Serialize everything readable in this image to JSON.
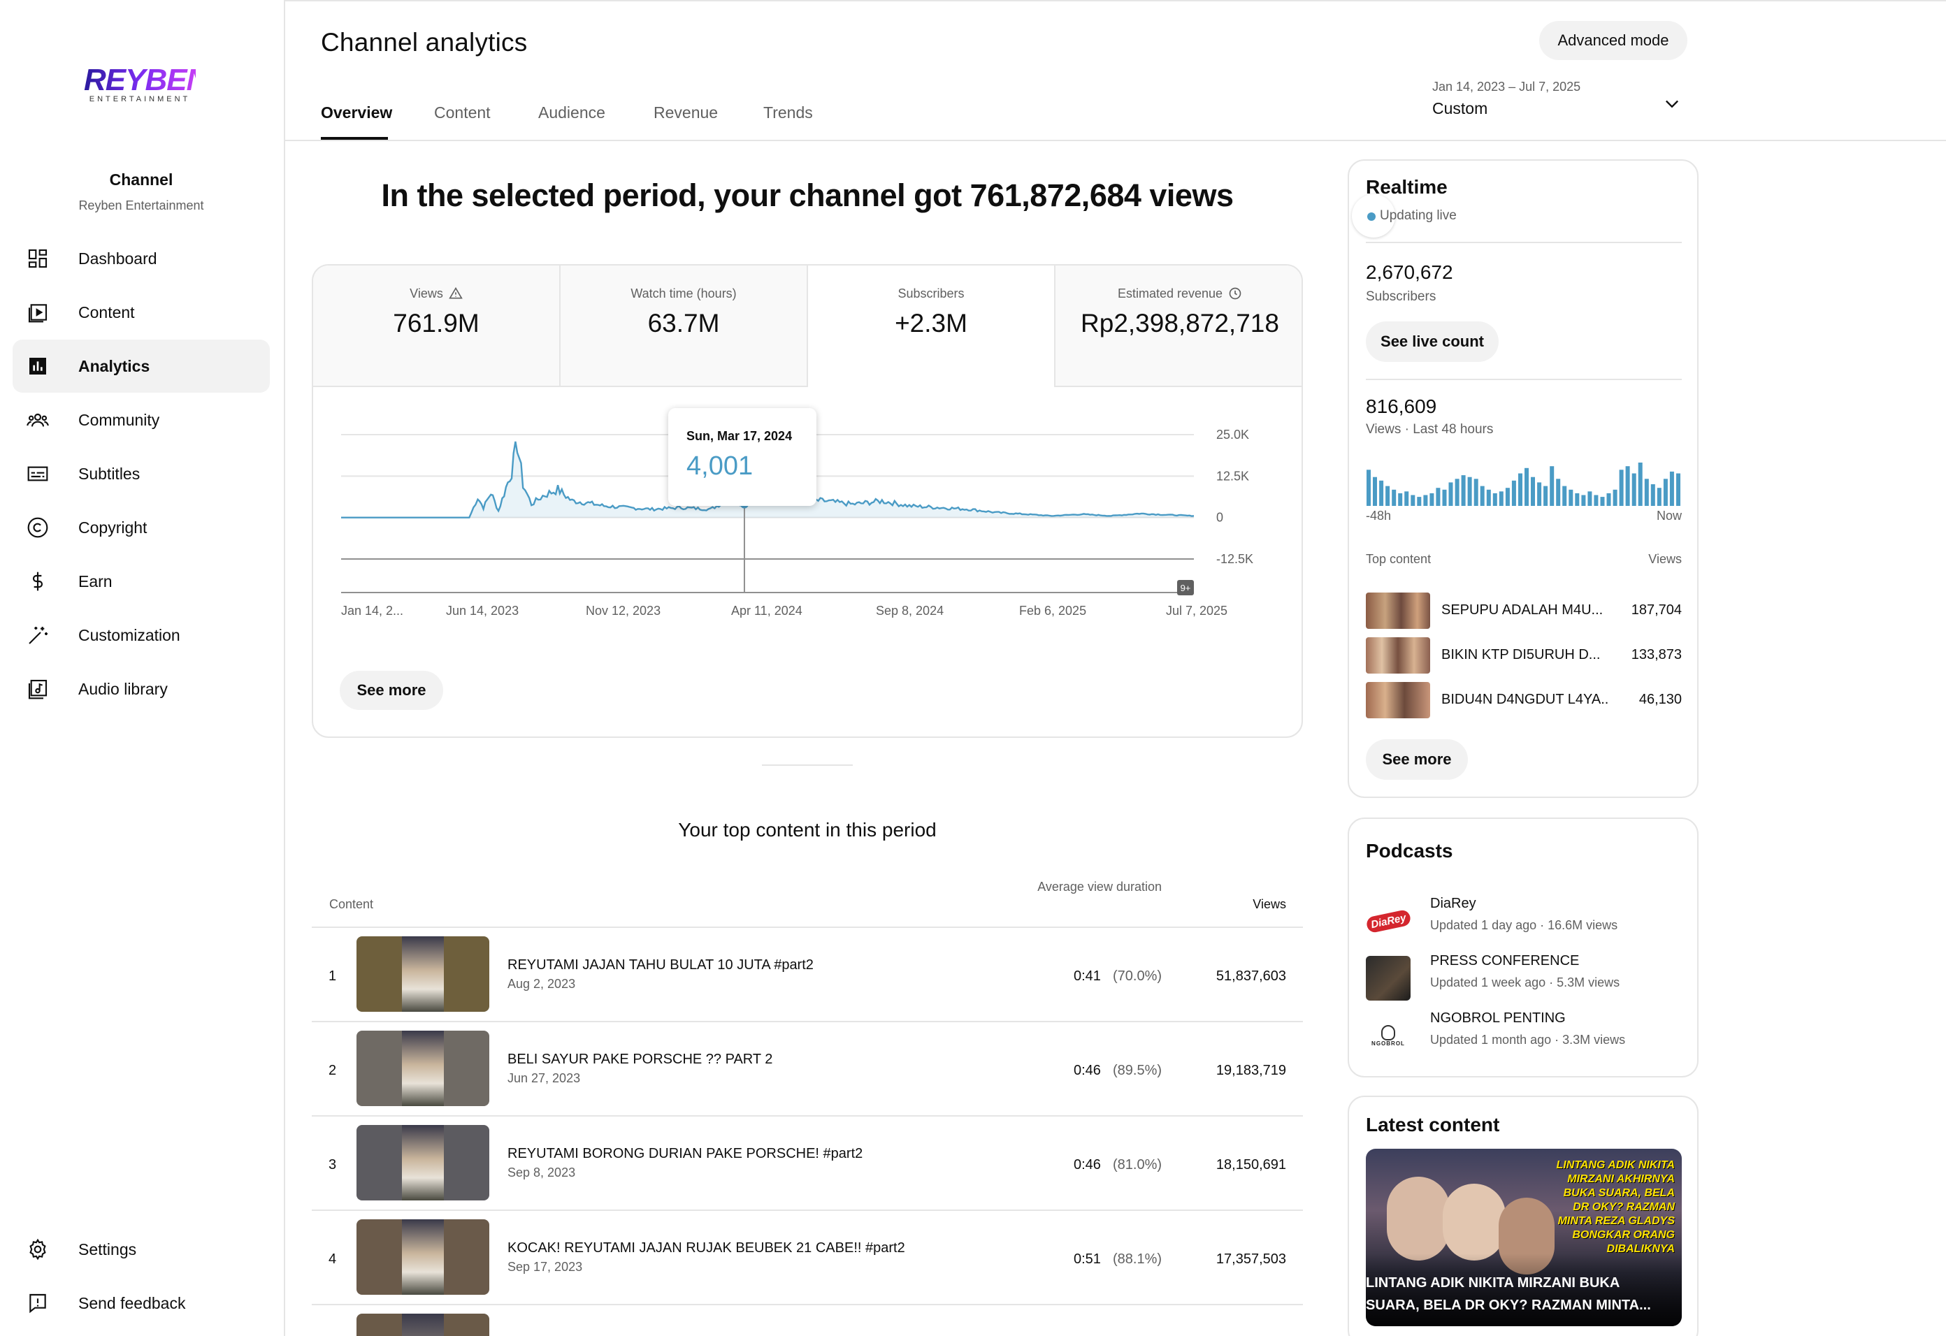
{
  "sidebar": {
    "logo_main": "REYBEN",
    "logo_sub": "ENTERTAINMENT",
    "channel_label": "Channel",
    "channel_name": "Reyben Entertainment",
    "items": [
      {
        "label": "Dashboard",
        "icon": "dashboard-icon"
      },
      {
        "label": "Content",
        "icon": "content-icon"
      },
      {
        "label": "Analytics",
        "icon": "analytics-icon",
        "active": true
      },
      {
        "label": "Community",
        "icon": "community-icon"
      },
      {
        "label": "Subtitles",
        "icon": "subtitles-icon"
      },
      {
        "label": "Copyright",
        "icon": "copyright-icon"
      },
      {
        "label": "Earn",
        "icon": "dollar-icon"
      },
      {
        "label": "Customization",
        "icon": "magic-wand-icon"
      },
      {
        "label": "Audio library",
        "icon": "audio-library-icon"
      }
    ],
    "bottom_items": [
      {
        "label": "Settings",
        "icon": "gear-icon"
      },
      {
        "label": "Send feedback",
        "icon": "feedback-icon"
      }
    ]
  },
  "header": {
    "title": "Channel analytics",
    "advanced_mode": "Advanced mode",
    "tabs": [
      "Overview",
      "Content",
      "Audience",
      "Revenue",
      "Trends"
    ],
    "active_tab": "Overview",
    "date_range": "Jan 14, 2023 – Jul 7, 2025",
    "date_preset": "Custom"
  },
  "headline": "In the selected period, your channel got 761,872,684 views",
  "metrics": [
    {
      "label": "Views",
      "value": "761.9M",
      "icon": "warning-icon"
    },
    {
      "label": "Watch time (hours)",
      "value": "63.7M"
    },
    {
      "label": "Subscribers",
      "value": "+2.3M",
      "selected": true
    },
    {
      "label": "Estimated revenue",
      "value": "Rp2,398,872,718",
      "icon": "clock-icon"
    }
  ],
  "tooltip": {
    "date": "Sun, Mar 17, 2024",
    "value": "4,001"
  },
  "chart_data": {
    "type": "line",
    "series_color": "#4a9bc5",
    "x_ticks": [
      "Jan 14, 2...",
      "Jun 14, 2023",
      "Nov 12, 2023",
      "Apr 11, 2024",
      "Sep 8, 2024",
      "Feb 6, 2025",
      "Jul 7, 2025"
    ],
    "y_ticks": [
      "25.0K",
      "12.5K",
      "0",
      "-12.5K"
    ],
    "ylim": [
      -12500,
      25000
    ],
    "badge": "9+",
    "points": [
      {
        "x": "2023-01-14",
        "y": 0
      },
      {
        "x": "2023-05-30",
        "y": 0
      },
      {
        "x": "2023-06-08",
        "y": 6000
      },
      {
        "x": "2023-06-14",
        "y": 3000
      },
      {
        "x": "2023-06-22",
        "y": 7500
      },
      {
        "x": "2023-06-30",
        "y": 2000
      },
      {
        "x": "2023-07-08",
        "y": 9000
      },
      {
        "x": "2023-07-14",
        "y": 14000
      },
      {
        "x": "2023-07-20",
        "y": 22500
      },
      {
        "x": "2023-07-26",
        "y": 10000
      },
      {
        "x": "2023-08-04",
        "y": 4000
      },
      {
        "x": "2023-08-16",
        "y": 6500
      },
      {
        "x": "2023-09-01",
        "y": 8500
      },
      {
        "x": "2023-09-16",
        "y": 5000
      },
      {
        "x": "2023-10-01",
        "y": 4500
      },
      {
        "x": "2023-10-20",
        "y": 3500
      },
      {
        "x": "2023-11-12",
        "y": 3000
      },
      {
        "x": "2023-12-10",
        "y": 2500
      },
      {
        "x": "2024-01-10",
        "y": 3000
      },
      {
        "x": "2024-02-10",
        "y": 2500
      },
      {
        "x": "2024-03-01",
        "y": 5500
      },
      {
        "x": "2024-03-17",
        "y": 4001
      },
      {
        "x": "2024-04-11",
        "y": 7000
      },
      {
        "x": "2024-05-10",
        "y": 5500
      },
      {
        "x": "2024-06-10",
        "y": 5000
      },
      {
        "x": "2024-07-10",
        "y": 4000
      },
      {
        "x": "2024-08-10",
        "y": 5000
      },
      {
        "x": "2024-09-08",
        "y": 3500
      },
      {
        "x": "2024-10-10",
        "y": 3000
      },
      {
        "x": "2024-11-10",
        "y": 2500
      },
      {
        "x": "2024-12-10",
        "y": 1500
      },
      {
        "x": "2025-01-10",
        "y": 1000
      },
      {
        "x": "2025-02-06",
        "y": 500
      },
      {
        "x": "2025-03-10",
        "y": 1000
      },
      {
        "x": "2025-04-10",
        "y": 500
      },
      {
        "x": "2025-05-10",
        "y": 1200
      },
      {
        "x": "2025-06-10",
        "y": 800
      },
      {
        "x": "2025-07-07",
        "y": 500
      }
    ]
  },
  "see_more": "See more",
  "top_content": {
    "title": "Your top content in this period",
    "col_content": "Content",
    "col_avd": "Average view duration",
    "col_views": "Views",
    "rows": [
      {
        "rank": "1",
        "title": "REYUTAMI JAJAN TAHU BULAT 10 JUTA #part2",
        "date": "Aug 2, 2023",
        "avd": "0:41",
        "pct": "(70.0%)",
        "views": "51,837,603",
        "color": "#6e5f3c"
      },
      {
        "rank": "2",
        "title": "BELI SAYUR PAKE PORSCHE ?? PART 2",
        "date": "Jun 27, 2023",
        "avd": "0:46",
        "pct": "(89.5%)",
        "views": "19,183,719",
        "color": "#6f6a64"
      },
      {
        "rank": "3",
        "title": "REYUTAMI BORONG DURIAN PAKE PORSCHE! #part2",
        "date": "Sep 8, 2023",
        "avd": "0:46",
        "pct": "(81.0%)",
        "views": "18,150,691",
        "color": "#5c5b60"
      },
      {
        "rank": "4",
        "title": "KOCAK! REYUTAMI JAJAN RUJAK BEUBEK 21 CABE!! #part2",
        "date": "Sep 17, 2023",
        "avd": "0:51",
        "pct": "(88.1%)",
        "views": "17,357,503",
        "color": "#6a5a4a"
      }
    ]
  },
  "realtime": {
    "title": "Realtime",
    "live": "Updating live",
    "subs_value": "2,670,672",
    "subs_label": "Subscribers",
    "see_live": "See live count",
    "views_value": "816,609",
    "views_label": "Views · Last 48 hours",
    "bars": [
      40,
      32,
      28,
      22,
      18,
      14,
      16,
      12,
      10,
      12,
      14,
      20,
      18,
      26,
      30,
      34,
      32,
      30,
      22,
      18,
      14,
      16,
      20,
      28,
      36,
      42,
      32,
      26,
      22,
      44,
      30,
      22,
      18,
      14,
      12,
      16,
      12,
      10,
      14,
      18,
      40,
      44,
      36,
      48,
      30,
      24,
      20,
      30,
      38,
      36
    ],
    "axis_left": "-48h",
    "axis_right": "Now",
    "tc_head": "Top content",
    "tc_views_head": "Views",
    "top": [
      {
        "title": "SEPUPU ADALAH M4U...",
        "views": "187,704"
      },
      {
        "title": "BIKIN KTP DI5URUH D...",
        "views": "133,873"
      },
      {
        "title": "BIDU4N D4NGDUT L4YA...",
        "views": "46,130"
      }
    ],
    "see_more": "See more"
  },
  "podcasts": {
    "title": "Podcasts",
    "items": [
      {
        "name": "DiaRey",
        "meta": "Updated 1 day ago · 16.6M views",
        "badge": "DiaRey"
      },
      {
        "name": "PRESS CONFERENCE",
        "meta": "Updated 1 week ago · 5.3M views"
      },
      {
        "name": "NGOBROL PENTING",
        "meta": "Updated 1 month ago · 3.3M views",
        "badge": "NGOBROL"
      }
    ]
  },
  "latest": {
    "title": "Latest content",
    "caption": "LINTANG ADIK NIKITA MIRZANI BUKA SUARA, BELA DR OKY? RAZMAN MINTA...",
    "overlay": "LINTANG ADIK NIKITA MIRZANI AKHIRNYA BUKA SUARA, BELA DR OKY? RAZMAN MINTA REZA GLADYS BONGKAR ORANG DIBALIKNYA"
  }
}
